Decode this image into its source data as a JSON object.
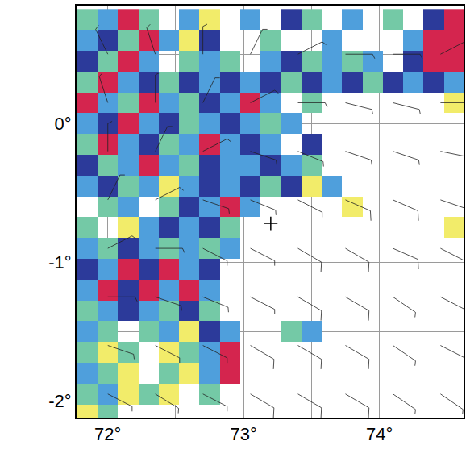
{
  "chart_data": {
    "type": "heatmap",
    "grid": true,
    "xlim": [
      71.77,
      74.62
    ],
    "ylim": [
      -2.12,
      0.85
    ],
    "xticks": [
      {
        "value": 72,
        "label": "72°"
      },
      {
        "value": 73,
        "label": "73°"
      },
      {
        "value": 74,
        "label": "74°"
      }
    ],
    "yticks": [
      {
        "value": -2,
        "label": "-2°"
      },
      {
        "value": -1,
        "label": "-1°"
      },
      {
        "value": 0,
        "label": "0°"
      }
    ],
    "zlim": [
      0.5,
      5.5
    ],
    "colors": [
      "#f2ec6a",
      "#74c9a6",
      "#4f9fdc",
      "#2c3a9a",
      "#d4254e"
    ],
    "x": [
      71.85,
      72.0,
      72.15,
      72.3,
      72.45,
      72.6,
      72.75,
      72.9,
      73.05,
      73.2,
      73.35,
      73.5,
      73.65,
      73.8,
      73.95,
      74.1,
      74.25,
      74.4,
      74.55
    ],
    "y": [
      0.75,
      0.6,
      0.45,
      0.3,
      0.15,
      0,
      -0.15,
      -0.3,
      -0.45,
      -0.6,
      -0.75,
      -0.9,
      -1.05,
      -1.2,
      -1.35,
      -1.5,
      -1.65,
      -1.8,
      -1.95,
      -2.1
    ],
    "z": [
      [
        2,
        3,
        5,
        2,
        null,
        3,
        1,
        null,
        3,
        null,
        4,
        2,
        null,
        3,
        null,
        2,
        null,
        4,
        5
      ],
      [
        3,
        4,
        2,
        5,
        3,
        1,
        4,
        null,
        null,
        2,
        null,
        null,
        3,
        null,
        null,
        null,
        3,
        5,
        5
      ],
      [
        4,
        2,
        5,
        3,
        null,
        2,
        3,
        2,
        null,
        3,
        4,
        2,
        3,
        2,
        3,
        null,
        4,
        5,
        5
      ],
      [
        2,
        5,
        3,
        4,
        2,
        4,
        3,
        4,
        3,
        4,
        2,
        4,
        3,
        4,
        2,
        4,
        3,
        4,
        3
      ],
      [
        5,
        3,
        2,
        5,
        3,
        2,
        4,
        3,
        5,
        3,
        null,
        2,
        null,
        null,
        null,
        null,
        null,
        null,
        1
      ],
      [
        3,
        4,
        5,
        3,
        4,
        2,
        3,
        4,
        3,
        2,
        3,
        null,
        null,
        null,
        null,
        null,
        null,
        null,
        null
      ],
      [
        2,
        5,
        3,
        4,
        2,
        3,
        5,
        3,
        4,
        3,
        null,
        4,
        null,
        null,
        null,
        null,
        null,
        null,
        null
      ],
      [
        4,
        2,
        3,
        5,
        3,
        2,
        4,
        3,
        3,
        4,
        3,
        2,
        null,
        null,
        null,
        null,
        null,
        null,
        null
      ],
      [
        3,
        4,
        2,
        3,
        1,
        3,
        4,
        3,
        4,
        2,
        4,
        1,
        3,
        null,
        null,
        null,
        null,
        null,
        null
      ],
      [
        null,
        2,
        3,
        null,
        2,
        4,
        3,
        5,
        3,
        null,
        null,
        null,
        null,
        1,
        null,
        null,
        null,
        null,
        null
      ],
      [
        2,
        null,
        1,
        3,
        4,
        3,
        4,
        2,
        null,
        null,
        null,
        null,
        null,
        null,
        null,
        null,
        null,
        null,
        1
      ],
      [
        3,
        2,
        4,
        3,
        2,
        3,
        2,
        3,
        null,
        null,
        null,
        null,
        null,
        null,
        null,
        null,
        null,
        null,
        null
      ],
      [
        4,
        3,
        5,
        4,
        5,
        3,
        4,
        null,
        null,
        null,
        null,
        null,
        null,
        null,
        null,
        null,
        null,
        null,
        null
      ],
      [
        3,
        5,
        4,
        5,
        3,
        5,
        3,
        null,
        null,
        null,
        null,
        null,
        null,
        null,
        null,
        null,
        null,
        null,
        null
      ],
      [
        2,
        3,
        4,
        3,
        2,
        4,
        2,
        null,
        null,
        null,
        null,
        null,
        null,
        null,
        null,
        null,
        null,
        null,
        null
      ],
      [
        3,
        2,
        null,
        2,
        3,
        1,
        4,
        3,
        null,
        null,
        2,
        3,
        null,
        null,
        null,
        null,
        null,
        null,
        null
      ],
      [
        2,
        1,
        2,
        null,
        1,
        2,
        3,
        5,
        null,
        null,
        null,
        null,
        null,
        null,
        null,
        null,
        null,
        null,
        null
      ],
      [
        3,
        2,
        1,
        null,
        2,
        1,
        3,
        5,
        null,
        null,
        null,
        null,
        null,
        null,
        null,
        null,
        null,
        null,
        null
      ],
      [
        2,
        3,
        1,
        2,
        1,
        null,
        2,
        null,
        null,
        null,
        null,
        null,
        null,
        null,
        null,
        null,
        null,
        null,
        null
      ],
      [
        1,
        2,
        null,
        null,
        null,
        null,
        null,
        null,
        null,
        null,
        null,
        null,
        null,
        null,
        null,
        null,
        null,
        null,
        null
      ]
    ],
    "winds": {
      "x": [
        72.0,
        72.35,
        72.7,
        73.05,
        73.4,
        73.75,
        74.1,
        74.45
      ],
      "y": [
        -1.95,
        -1.6,
        -1.25,
        -0.9,
        -0.55,
        -0.2,
        0.15,
        0.5
      ],
      "u": [
        [
          -4,
          -5,
          -6,
          -7,
          -7,
          -7,
          -6,
          -6
        ],
        [
          -3,
          -4,
          -6,
          -7,
          -7,
          -7,
          -6,
          -6
        ],
        [
          -2,
          -3,
          -5,
          -6,
          -7,
          -7,
          -6,
          -6
        ],
        [
          -2,
          -2,
          -4,
          -6,
          -7,
          -7,
          -7,
          -6
        ],
        [
          -1,
          -2,
          -3,
          -5,
          -6,
          -7,
          -7,
          -6
        ],
        [
          0,
          -1,
          -2,
          -3,
          -5,
          -6,
          -6,
          -5
        ],
        [
          1,
          0,
          -1,
          -2,
          -3,
          -4,
          -4,
          -3
        ],
        [
          2,
          1,
          0,
          -1,
          -2,
          -3,
          -3,
          -2
        ]
      ],
      "v": [
        [
          2,
          3,
          3,
          4,
          4,
          4,
          4,
          4
        ],
        [
          1,
          2,
          3,
          4,
          4,
          4,
          4,
          3
        ],
        [
          0,
          1,
          2,
          3,
          4,
          4,
          4,
          3
        ],
        [
          -1,
          0,
          2,
          3,
          4,
          4,
          3,
          3
        ],
        [
          -2,
          -1,
          1,
          2,
          3,
          3,
          3,
          2
        ],
        [
          -3,
          -2,
          -1,
          1,
          2,
          2,
          2,
          1
        ],
        [
          -3,
          -3,
          -2,
          -1,
          0,
          1,
          1,
          0
        ],
        [
          -4,
          -3,
          -3,
          -2,
          -1,
          0,
          0,
          -1
        ]
      ]
    },
    "points": [
      {
        "x": 73.2,
        "y": -0.72,
        "marker": "cross-thin"
      }
    ]
  }
}
